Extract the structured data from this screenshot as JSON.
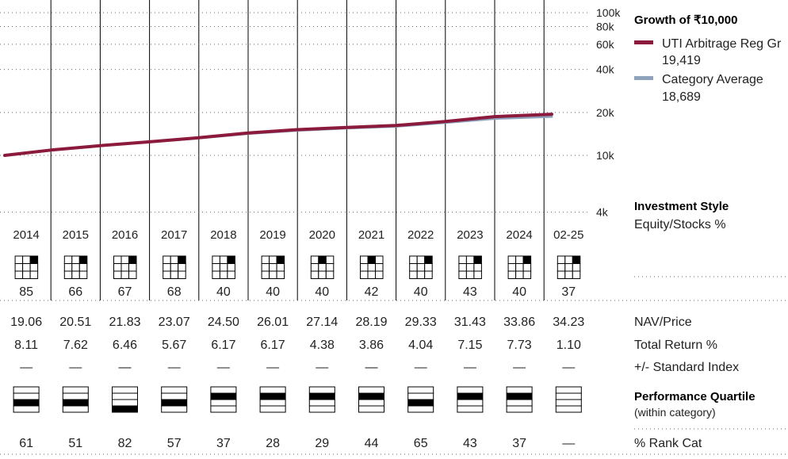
{
  "chart_data": {
    "type": "line",
    "title": "Growth of ₹10,000",
    "y_scale": "log",
    "ylim": [
      4000,
      100000
    ],
    "y_ticks": [
      "100k",
      "80k",
      "60k",
      "40k",
      "20k",
      "10k",
      "4k"
    ],
    "x": [
      "2014",
      "2015",
      "2016",
      "2017",
      "2018",
      "2019",
      "2020",
      "2021",
      "2022",
      "2023",
      "2024",
      "02-25"
    ],
    "series": [
      {
        "name": "UTI Arbitrage Reg Gr",
        "color": "#8b1a3d",
        "end_value_label": "19,419",
        "values": [
          10000,
          10900,
          11700,
          12450,
          13300,
          14350,
          15150,
          15700,
          16200,
          17300,
          18700,
          19419
        ]
      },
      {
        "name": "Category Average",
        "color": "#8ea2bc",
        "end_value_label": "18,689",
        "values": [
          9980,
          10850,
          11650,
          12380,
          13200,
          14200,
          14950,
          15500,
          15950,
          16950,
          18100,
          18689
        ]
      }
    ]
  },
  "style_box": {
    "title": "Investment Style",
    "subtitle": "Equity/Stocks %",
    "years": [
      "2014",
      "2015",
      "2016",
      "2017",
      "2018",
      "2019",
      "2020",
      "2021",
      "2022",
      "2023",
      "2024",
      "02-25"
    ],
    "equity_pct": [
      "85",
      "66",
      "67",
      "68",
      "40",
      "40",
      "40",
      "42",
      "40",
      "43",
      "40",
      "37"
    ],
    "style_cell": [
      "3",
      "3",
      "3",
      "3",
      "3",
      "3",
      "2",
      "2",
      "3",
      "3",
      "3",
      "3"
    ]
  },
  "table": {
    "rows": [
      {
        "label": "NAV/Price",
        "values": [
          "19.06",
          "20.51",
          "21.83",
          "23.07",
          "24.50",
          "26.01",
          "27.14",
          "28.19",
          "29.33",
          "31.43",
          "33.86",
          "34.23"
        ]
      },
      {
        "label": "Total Return %",
        "values": [
          "8.11",
          "7.62",
          "6.46",
          "5.67",
          "6.17",
          "6.17",
          "4.38",
          "3.86",
          "4.04",
          "7.15",
          "7.73",
          "1.10"
        ]
      },
      {
        "label": "+/- Standard Index",
        "values": [
          "—",
          "—",
          "—",
          "—",
          "—",
          "—",
          "—",
          "—",
          "—",
          "—",
          "—",
          "—"
        ]
      }
    ],
    "quartile_title": "Performance Quartile",
    "quartile_subtitle": "(within category)",
    "quartiles": [
      3,
      3,
      4,
      3,
      2,
      2,
      2,
      2,
      3,
      2,
      2,
      0
    ],
    "rank_label": "% Rank Cat",
    "rank_values": [
      "61",
      "51",
      "82",
      "57",
      "37",
      "28",
      "29",
      "44",
      "65",
      "43",
      "37",
      "—"
    ]
  }
}
